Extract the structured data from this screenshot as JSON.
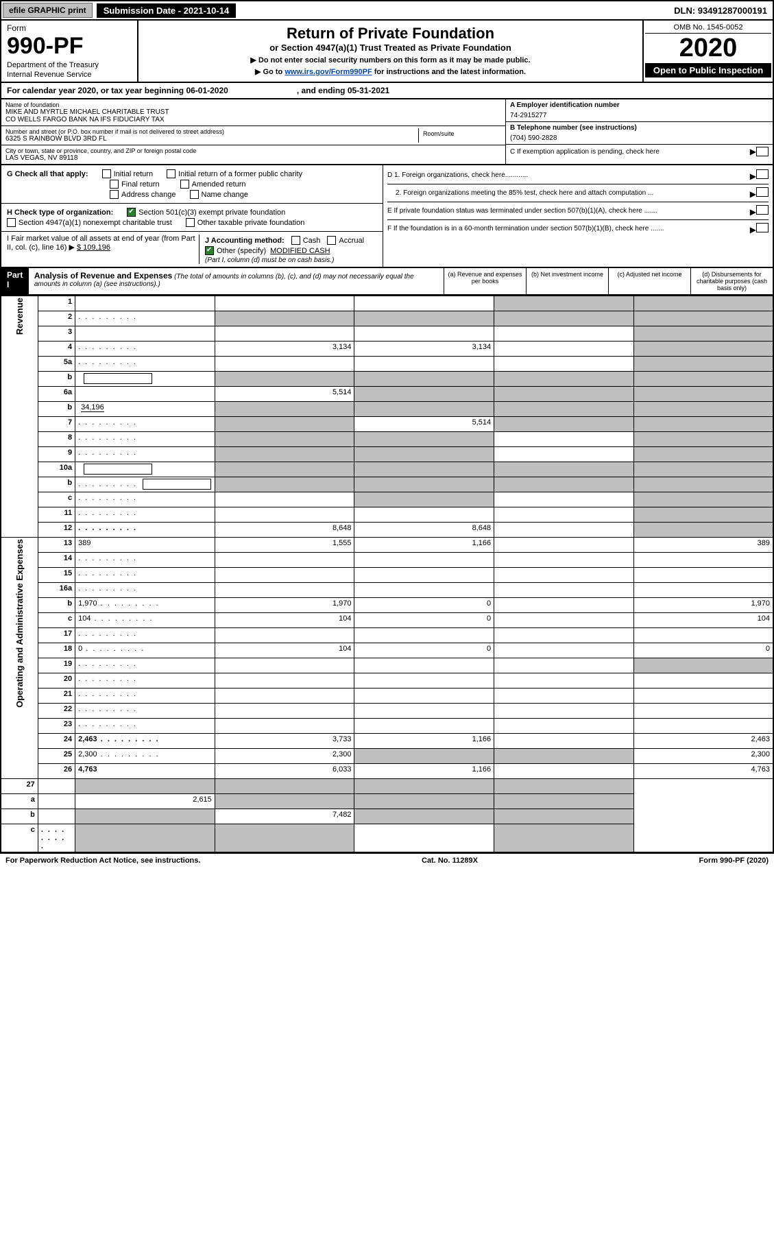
{
  "topbar": {
    "efile": "efile GRAPHIC print",
    "submission": "Submission Date - 2021-10-14",
    "dln": "DLN: 93491287000191"
  },
  "header": {
    "form_label": "Form",
    "form_number": "990-PF",
    "dept": "Department of the Treasury",
    "irs": "Internal Revenue Service",
    "title": "Return of Private Foundation",
    "subtitle": "or Section 4947(a)(1) Trust Treated as Private Foundation",
    "note1": "▶ Do not enter social security numbers on this form as it may be made public.",
    "note2_pre": "▶ Go to ",
    "note2_link": "www.irs.gov/Form990PF",
    "note2_post": " for instructions and the latest information.",
    "omb": "OMB No. 1545-0052",
    "year": "2020",
    "open": "Open to Public Inspection"
  },
  "calyear": {
    "text": "For calendar year 2020, or tax year beginning 06-01-2020",
    "ending": ", and ending 05-31-2021"
  },
  "info": {
    "name_label": "Name of foundation",
    "name1": "MIKE AND MYRTLE MICHAEL CHARITABLE TRUST",
    "name2": "CO WELLS FARGO BANK NA IFS FIDUCIARY TAX",
    "addr_label": "Number and street (or P.O. box number if mail is not delivered to street address)",
    "addr": "6325 S RAINBOW BLVD 3RD FL",
    "room_label": "Room/suite",
    "city_label": "City or town, state or province, country, and ZIP or foreign postal code",
    "city": "LAS VEGAS, NV  89118",
    "ein_label": "A Employer identification number",
    "ein": "74-2915277",
    "tel_label": "B Telephone number (see instructions)",
    "tel": "(704) 590-2828",
    "c": "C If exemption application is pending, check here",
    "d1": "D 1. Foreign organizations, check here............",
    "d2": "2. Foreign organizations meeting the 85% test, check here and attach computation ...",
    "e": "E  If private foundation status was terminated under section 507(b)(1)(A), check here .......",
    "f": "F  If the foundation is in a 60-month termination under section 507(b)(1)(B), check here ......."
  },
  "checks": {
    "g_label": "G Check all that apply:",
    "g_opts": [
      "Initial return",
      "Initial return of a former public charity",
      "Final return",
      "Amended return",
      "Address change",
      "Name change"
    ],
    "h_label": "H Check type of organization:",
    "h1": "Section 501(c)(3) exempt private foundation",
    "h2": "Section 4947(a)(1) nonexempt charitable trust",
    "h3": "Other taxable private foundation",
    "i_label": "I Fair market value of all assets at end of year (from Part II, col. (c), line 16) ▶",
    "i_val": "$  109,196",
    "j_label": "J Accounting method:",
    "j_cash": "Cash",
    "j_accrual": "Accrual",
    "j_other": "Other (specify)",
    "j_other_val": "MODIFIED CASH",
    "j_note": "(Part I, column (d) must be on cash basis.)"
  },
  "part1": {
    "label": "Part I",
    "title": "Analysis of Revenue and Expenses",
    "note": "(The total of amounts in columns (b), (c), and (d) may not necessarily equal the amounts in column (a) (see instructions).)",
    "col_a": "(a)  Revenue and expenses per books",
    "col_b": "(b)  Net investment income",
    "col_c": "(c)  Adjusted net income",
    "col_d": "(d)  Disbursements for charitable purposes (cash basis only)"
  },
  "sidelabels": {
    "revenue": "Revenue",
    "expenses": "Operating and Administrative Expenses"
  },
  "rows": [
    {
      "n": "1",
      "d": "",
      "a": "",
      "b": "",
      "c": "",
      "shade_c": true,
      "shade_d": true
    },
    {
      "n": "2",
      "d": "",
      "a": "",
      "b": "",
      "c": "",
      "shade_a": true,
      "shade_b": true,
      "shade_c": true,
      "shade_d": true,
      "dots": true
    },
    {
      "n": "3",
      "d": "",
      "a": "",
      "b": "",
      "c": "",
      "shade_d": true
    },
    {
      "n": "4",
      "d": "",
      "a": "3,134",
      "b": "3,134",
      "c": "",
      "shade_d": true,
      "dots": true
    },
    {
      "n": "5a",
      "d": "",
      "a": "",
      "b": "",
      "c": "",
      "shade_d": true,
      "dots": true
    },
    {
      "n": "b",
      "d": "",
      "a": "",
      "b": "",
      "c": "",
      "shade_a": true,
      "shade_b": true,
      "shade_c": true,
      "shade_d": true,
      "inline": true
    },
    {
      "n": "6a",
      "d": "",
      "a": "5,514",
      "b": "",
      "c": "",
      "shade_b": true,
      "shade_c": true,
      "shade_d": true
    },
    {
      "n": "b",
      "d": "",
      "inline_val": "34,196",
      "a": "",
      "b": "",
      "c": "",
      "shade_a": true,
      "shade_b": true,
      "shade_c": true,
      "shade_d": true
    },
    {
      "n": "7",
      "d": "",
      "a": "",
      "b": "5,514",
      "c": "",
      "shade_a": true,
      "shade_c": true,
      "shade_d": true,
      "dots": true
    },
    {
      "n": "8",
      "d": "",
      "a": "",
      "b": "",
      "c": "",
      "shade_a": true,
      "shade_b": true,
      "shade_d": true,
      "dots": true
    },
    {
      "n": "9",
      "d": "",
      "a": "",
      "b": "",
      "c": "",
      "shade_a": true,
      "shade_b": true,
      "shade_d": true,
      "dots": true
    },
    {
      "n": "10a",
      "d": "",
      "a": "",
      "b": "",
      "c": "",
      "shade_a": true,
      "shade_b": true,
      "shade_c": true,
      "shade_d": true,
      "inline": true
    },
    {
      "n": "b",
      "d": "",
      "a": "",
      "b": "",
      "c": "",
      "shade_a": true,
      "shade_b": true,
      "shade_c": true,
      "shade_d": true,
      "inline": true,
      "dots": true
    },
    {
      "n": "c",
      "d": "",
      "a": "",
      "b": "",
      "c": "",
      "shade_b": true,
      "shade_d": true,
      "dots": true
    },
    {
      "n": "11",
      "d": "",
      "a": "",
      "b": "",
      "c": "",
      "shade_d": true,
      "dots": true
    },
    {
      "n": "12",
      "d": "",
      "a": "8,648",
      "b": "8,648",
      "c": "",
      "shade_d": true,
      "bold": true,
      "dots": true
    }
  ],
  "exp_rows": [
    {
      "n": "13",
      "d": "389",
      "a": "1,555",
      "b": "1,166",
      "c": ""
    },
    {
      "n": "14",
      "d": "",
      "a": "",
      "b": "",
      "c": "",
      "dots": true
    },
    {
      "n": "15",
      "d": "",
      "a": "",
      "b": "",
      "c": "",
      "dots": true
    },
    {
      "n": "16a",
      "d": "",
      "a": "",
      "b": "",
      "c": "",
      "dots": true
    },
    {
      "n": "b",
      "d": "1,970",
      "a": "1,970",
      "b": "0",
      "c": "",
      "dots": true
    },
    {
      "n": "c",
      "d": "104",
      "a": "104",
      "b": "0",
      "c": "",
      "dots": true
    },
    {
      "n": "17",
      "d": "",
      "a": "",
      "b": "",
      "c": "",
      "dots": true
    },
    {
      "n": "18",
      "d": "0",
      "a": "104",
      "b": "0",
      "c": "",
      "dots": true
    },
    {
      "n": "19",
      "d": "",
      "a": "",
      "b": "",
      "c": "",
      "shade_d": true,
      "dots": true
    },
    {
      "n": "20",
      "d": "",
      "a": "",
      "b": "",
      "c": "",
      "dots": true
    },
    {
      "n": "21",
      "d": "",
      "a": "",
      "b": "",
      "c": "",
      "dots": true
    },
    {
      "n": "22",
      "d": "",
      "a": "",
      "b": "",
      "c": "",
      "dots": true
    },
    {
      "n": "23",
      "d": "",
      "a": "",
      "b": "",
      "c": "",
      "dots": true
    },
    {
      "n": "24",
      "d": "2,463",
      "a": "3,733",
      "b": "1,166",
      "c": "",
      "bold": true,
      "dots": true
    },
    {
      "n": "25",
      "d": "2,300",
      "a": "2,300",
      "b": "",
      "c": "",
      "shade_b": true,
      "shade_c": true,
      "dots": true
    },
    {
      "n": "26",
      "d": "4,763",
      "a": "6,033",
      "b": "1,166",
      "c": "",
      "bold": true
    }
  ],
  "net_rows": [
    {
      "n": "27",
      "d": "",
      "a": "",
      "b": "",
      "c": "",
      "shade_a": true,
      "shade_b": true,
      "shade_c": true,
      "shade_d": true
    },
    {
      "n": "a",
      "d": "",
      "a": "2,615",
      "b": "",
      "c": "",
      "shade_b": true,
      "shade_c": true,
      "shade_d": true,
      "bold": true
    },
    {
      "n": "b",
      "d": "",
      "a": "",
      "b": "7,482",
      "c": "",
      "shade_a": true,
      "shade_c": true,
      "shade_d": true,
      "bold": true
    },
    {
      "n": "c",
      "d": "",
      "a": "",
      "b": "",
      "c": "",
      "shade_a": true,
      "shade_b": true,
      "shade_d": true,
      "bold": true,
      "dots": true
    }
  ],
  "footer": {
    "left": "For Paperwork Reduction Act Notice, see instructions.",
    "mid": "Cat. No. 11289X",
    "right": "Form 990-PF (2020)"
  }
}
